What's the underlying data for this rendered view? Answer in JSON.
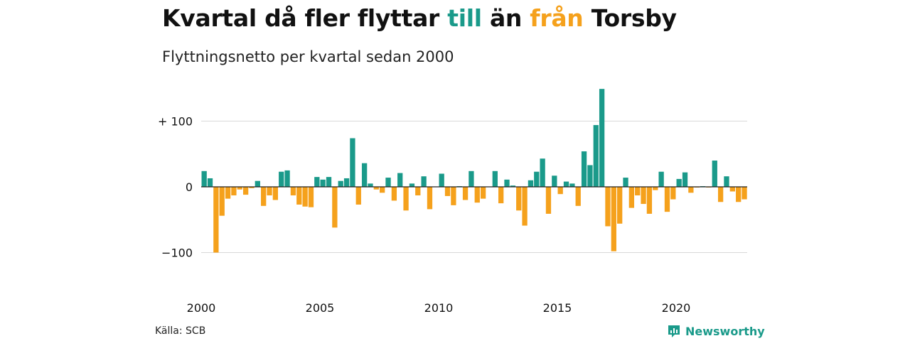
{
  "title": {
    "part1": "Kvartal då fler flyttar ",
    "part2": "till",
    "part3": " än ",
    "part4": "från",
    "part5": " Torsby"
  },
  "subtitle": "Flyttningsnetto per kvartal sedan 2000",
  "source": "Källa: SCB",
  "brand": "Newsworthy",
  "colors": {
    "positive": "#1a9a8a",
    "negative": "#f5a11c",
    "grid": "#d9d9d9",
    "zero": "#222222"
  },
  "chart_data": {
    "type": "bar",
    "title": "Kvartal då fler flyttar till än från Torsby",
    "subtitle": "Flyttningsnetto per kvartal sedan 2000",
    "start_year": 2000,
    "quarters_per_year": 4,
    "ylim": [
      -150,
      150
    ],
    "yticks": [
      {
        "value": 100,
        "label": "+ 100"
      },
      {
        "value": 0,
        "label": "0"
      },
      {
        "value": -100,
        "label": "−100"
      }
    ],
    "xticks": [
      {
        "year": 2000,
        "label": "2000"
      },
      {
        "year": 2005,
        "label": "2005"
      },
      {
        "year": 2010,
        "label": "2010"
      },
      {
        "year": 2015,
        "label": "2015"
      },
      {
        "year": 2020,
        "label": "2020"
      }
    ],
    "grid": true,
    "values": [
      24,
      13,
      -100,
      -44,
      -18,
      -13,
      -4,
      -12,
      -2,
      9,
      -29,
      -13,
      -20,
      23,
      25,
      -13,
      -27,
      -30,
      -31,
      15,
      11,
      15,
      -62,
      9,
      13,
      74,
      -27,
      36,
      5,
      -4,
      -9,
      14,
      -21,
      21,
      -36,
      5,
      -13,
      16,
      -34,
      0,
      20,
      -14,
      -28,
      1,
      -20,
      24,
      -24,
      -18,
      0,
      24,
      -25,
      11,
      2,
      -36,
      -59,
      10,
      23,
      43,
      -41,
      17,
      -11,
      8,
      5,
      -29,
      54,
      33,
      94,
      149,
      -60,
      -98,
      -56,
      14,
      -32,
      -13,
      -26,
      -41,
      -5,
      23,
      -38,
      -19,
      12,
      22,
      -9,
      -1,
      1,
      -1,
      40,
      -23,
      16,
      -7,
      -23,
      -19
    ]
  }
}
